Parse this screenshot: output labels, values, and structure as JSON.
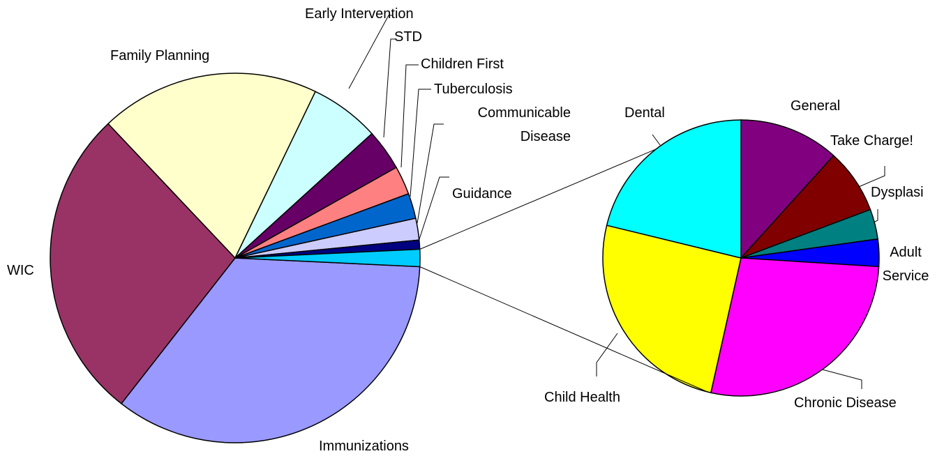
{
  "chart_data": [
    {
      "type": "pie",
      "categories": [
        "Immunizations",
        "WIC",
        "Family Planning",
        "Early Intervention",
        "STD",
        "Children First",
        "Tuberculosis",
        "Communicable Disease",
        "Guidance",
        null
      ],
      "values": [
        34.8,
        27.4,
        19.2,
        6.1,
        3.6,
        2.5,
        2.2,
        1.9,
        0.8,
        1.5
      ],
      "colors": [
        "#9999ff",
        "#993366",
        "#ffffcc",
        "#ccffff",
        "#660066",
        "#ff8080",
        "#0066cc",
        "#ccccff",
        "#000080",
        "#00ccff"
      ]
    },
    {
      "type": "pie",
      "categories": [
        "General",
        "Take Charge!",
        "Dysplasi",
        "Adult Service",
        "Chronic Disease",
        "Child Health",
        "Dental"
      ],
      "values": [
        11.7,
        7.6,
        3.5,
        3.2,
        27.5,
        25.3,
        21.2
      ],
      "colors": [
        "#800080",
        "#800000",
        "#008080",
        "#0000ff",
        "#ff00ff",
        "#ffff00",
        "#00ffff"
      ]
    }
  ]
}
